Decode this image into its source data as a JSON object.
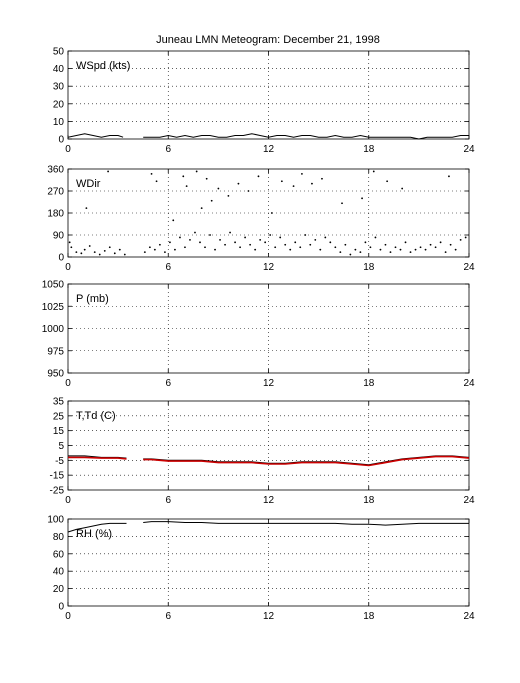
{
  "title": "Juneau LMN Meteogram:  December 21, 1998",
  "chart_data": [
    {
      "type": "line",
      "label": "WSpd (kts)",
      "xlim": [
        0,
        24
      ],
      "ylim": [
        0,
        50
      ],
      "x_ticks": [
        0,
        6,
        12,
        18,
        24
      ],
      "y_ticks": [
        0,
        10,
        20,
        30,
        40,
        50
      ],
      "grid": true,
      "series": [
        {
          "color": "#000000",
          "style": "line",
          "x": [
            0,
            0.5,
            1,
            1.5,
            2,
            2.5,
            3,
            3.3,
            4.5,
            5,
            5.5,
            6,
            6.5,
            7,
            7.5,
            8,
            8.5,
            9,
            9.5,
            10,
            10.5,
            11,
            11.5,
            12,
            12.5,
            13,
            13.5,
            14,
            14.5,
            15,
            15.5,
            16,
            16.5,
            17,
            17.5,
            18,
            18.5,
            19,
            19.5,
            20,
            20.5,
            21,
            21.5,
            22,
            22.5,
            23,
            23.5,
            24
          ],
          "y": [
            1,
            2,
            3,
            2,
            1,
            2,
            2,
            1,
            1,
            1,
            1,
            2,
            1,
            2,
            1,
            2,
            2,
            1,
            1,
            2,
            2,
            3,
            2,
            1,
            2,
            2,
            1,
            2,
            2,
            1,
            1,
            2,
            1,
            1,
            2,
            1,
            1,
            1,
            1,
            1,
            1,
            0,
            1,
            1,
            1,
            1,
            2,
            2
          ],
          "gap_after_x": 3.3
        }
      ]
    },
    {
      "type": "scatter",
      "label": "WDir",
      "xlim": [
        0,
        24
      ],
      "ylim": [
        0,
        360
      ],
      "x_ticks": [
        0,
        6,
        12,
        18,
        24
      ],
      "y_ticks": [
        0,
        90,
        180,
        270,
        360
      ],
      "grid": true,
      "series": [
        {
          "color": "#000000",
          "style": "points",
          "x": [
            0.1,
            0.2,
            0.5,
            0.8,
            1.0,
            1.3,
            1.6,
            1.9,
            2.2,
            2.5,
            2.8,
            3.1,
            3.4,
            4.6,
            4.9,
            5.2,
            5.5,
            5.8,
            6.1,
            6.4,
            6.7,
            7.0,
            7.3,
            7.6,
            7.9,
            8.2,
            8.5,
            8.8,
            9.1,
            9.4,
            9.7,
            10.0,
            10.3,
            10.6,
            10.9,
            11.2,
            11.5,
            11.8,
            12.1,
            12.4,
            12.7,
            13.0,
            13.3,
            13.6,
            13.9,
            14.2,
            14.5,
            14.8,
            15.1,
            15.4,
            15.7,
            16.0,
            16.3,
            16.6,
            16.9,
            17.2,
            17.5,
            17.8,
            18.1,
            18.4,
            18.7,
            19.0,
            19.3,
            19.6,
            19.9,
            20.2,
            20.5,
            20.8,
            21.1,
            21.4,
            21.7,
            22.0,
            22.3,
            22.6,
            22.9,
            23.2,
            23.5,
            23.8,
            2.4,
            5.0,
            5.3,
            6.9,
            7.1,
            7.7,
            8.0,
            8.3,
            9.0,
            9.6,
            10.2,
            10.8,
            11.4,
            12.8,
            13.5,
            14.0,
            14.6,
            15.2,
            17.6,
            18.3,
            19.1,
            20.0,
            22.8,
            1.1,
            6.3,
            8.6,
            12.2,
            16.4
          ],
          "y": [
            60,
            40,
            20,
            15,
            30,
            45,
            20,
            10,
            25,
            40,
            15,
            30,
            10,
            20,
            40,
            30,
            50,
            20,
            60,
            30,
            80,
            40,
            70,
            100,
            60,
            40,
            90,
            30,
            70,
            50,
            100,
            60,
            40,
            80,
            50,
            30,
            70,
            60,
            90,
            40,
            80,
            50,
            30,
            60,
            40,
            90,
            50,
            70,
            30,
            80,
            60,
            40,
            20,
            50,
            10,
            30,
            20,
            60,
            40,
            80,
            30,
            50,
            20,
            40,
            30,
            60,
            20,
            30,
            40,
            30,
            50,
            40,
            60,
            20,
            50,
            30,
            70,
            80,
            350,
            340,
            310,
            330,
            290,
            350,
            200,
            320,
            280,
            250,
            300,
            270,
            330,
            310,
            290,
            340,
            300,
            320,
            240,
            350,
            310,
            280,
            330,
            200,
            150,
            230,
            180,
            220
          ]
        }
      ]
    },
    {
      "type": "line",
      "label": "P (mb)",
      "xlim": [
        0,
        24
      ],
      "ylim": [
        950,
        1050
      ],
      "x_ticks": [
        0,
        6,
        12,
        18,
        24
      ],
      "y_ticks": [
        950,
        975,
        1000,
        1025,
        1050
      ],
      "grid": true,
      "series": []
    },
    {
      "type": "line",
      "label": "T,Td (C)",
      "xlim": [
        0,
        24
      ],
      "ylim": [
        -25,
        35
      ],
      "x_ticks": [
        0,
        6,
        12,
        18,
        24
      ],
      "y_ticks": [
        -25,
        -15,
        -5,
        5,
        15,
        25,
        35
      ],
      "grid": true,
      "series": [
        {
          "color": "#000000",
          "style": "line",
          "x": [
            0,
            1,
            2,
            3,
            3.5,
            4.5,
            5,
            6,
            7,
            8,
            9,
            10,
            11,
            12,
            13,
            14,
            15,
            16,
            17,
            18,
            19,
            20,
            21,
            22,
            23,
            24
          ],
          "y": [
            -2,
            -2,
            -3,
            -3,
            -3.5,
            -4,
            -4,
            -5,
            -5,
            -5,
            -6,
            -6,
            -6,
            -7,
            -7,
            -6,
            -6,
            -6,
            -7,
            -8,
            -6,
            -4,
            -3,
            -2,
            -2,
            -3
          ],
          "gap_after_x": 3.5
        },
        {
          "color": "#cc0000",
          "style": "line",
          "x": [
            0,
            1,
            2,
            3,
            3.5,
            4.5,
            5,
            6,
            7,
            8,
            9,
            10,
            11,
            12,
            13,
            14,
            15,
            16,
            17,
            18,
            19,
            20,
            21,
            22,
            23,
            24
          ],
          "y": [
            -3,
            -3,
            -3.5,
            -3.5,
            -4,
            -4.5,
            -4.5,
            -5.5,
            -5.5,
            -5.5,
            -6.5,
            -6.5,
            -6.5,
            -7.5,
            -7.5,
            -6.5,
            -6.5,
            -6.5,
            -7.5,
            -8.5,
            -6.5,
            -4.5,
            -3.5,
            -2.5,
            -2.5,
            -3.5
          ],
          "gap_after_x": 3.5
        }
      ]
    },
    {
      "type": "line",
      "label": "RH (%)",
      "xlim": [
        0,
        24
      ],
      "ylim": [
        0,
        100
      ],
      "x_ticks": [
        0,
        6,
        12,
        18,
        24
      ],
      "y_ticks": [
        0,
        20,
        40,
        60,
        80,
        100
      ],
      "grid": true,
      "series": [
        {
          "color": "#000000",
          "style": "line",
          "x": [
            0,
            0.5,
            1,
            1.5,
            2,
            2.5,
            3,
            3.5,
            4.5,
            5,
            6,
            7,
            8,
            9,
            10,
            11,
            12,
            13,
            14,
            15,
            16,
            17,
            18,
            19,
            20,
            21,
            22,
            23,
            24
          ],
          "y": [
            85,
            88,
            90,
            92,
            94,
            95,
            95,
            95,
            96,
            97,
            97,
            96,
            96,
            95,
            95,
            95,
            95,
            95,
            95,
            95,
            95,
            94,
            94,
            93,
            94,
            95,
            95,
            95,
            95
          ],
          "gap_after_x": 3.5
        }
      ]
    }
  ]
}
